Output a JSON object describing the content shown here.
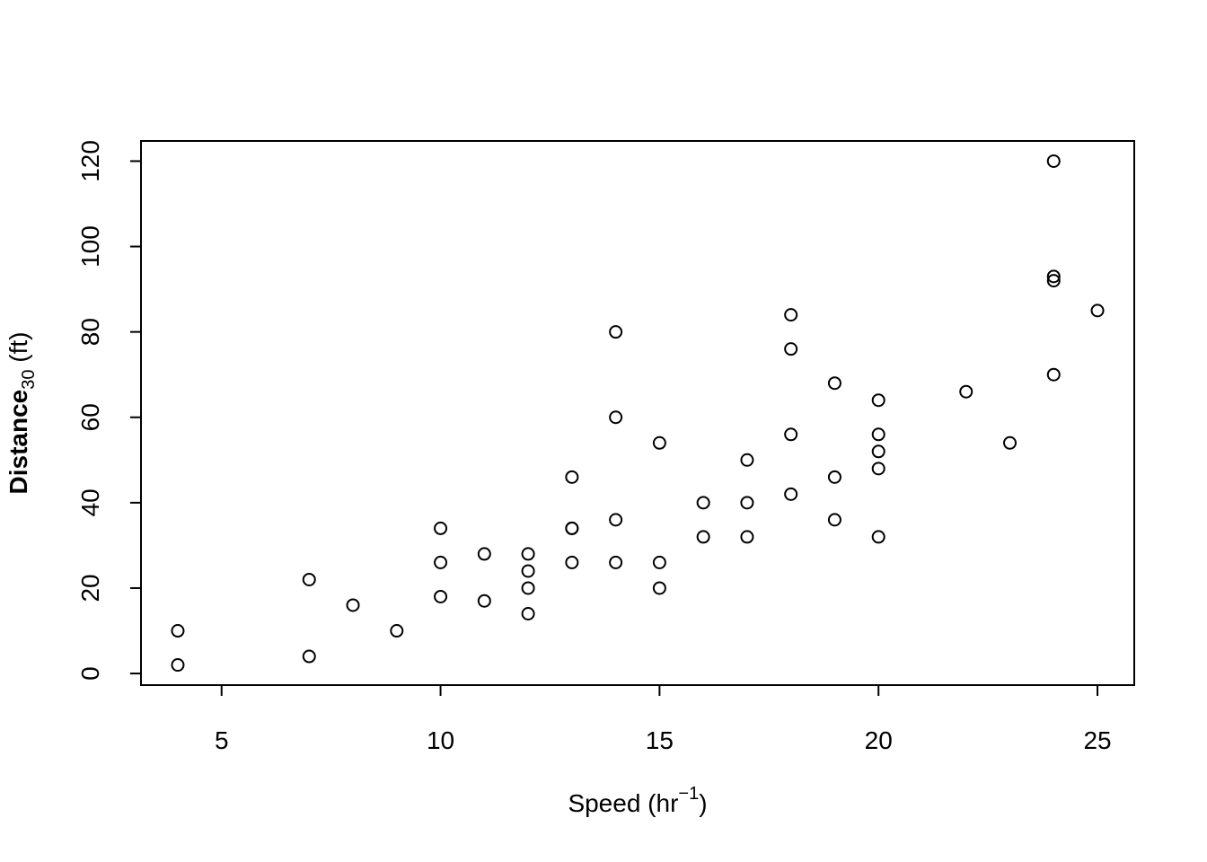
{
  "chart_data": {
    "type": "scatter",
    "x_label": {
      "text": "Speed (hr",
      "sup": "−1",
      "after": ")"
    },
    "y_label": {
      "text": "Distance",
      "sub": "30",
      "after": " (ft)"
    },
    "x": [
      4,
      4,
      7,
      7,
      8,
      9,
      10,
      10,
      10,
      11,
      11,
      12,
      12,
      12,
      12,
      13,
      13,
      13,
      13,
      14,
      14,
      14,
      14,
      15,
      15,
      15,
      16,
      16,
      17,
      17,
      17,
      18,
      18,
      18,
      18,
      19,
      19,
      19,
      20,
      20,
      20,
      20,
      20,
      22,
      23,
      24,
      24,
      24,
      24,
      25
    ],
    "y": [
      2,
      10,
      4,
      22,
      16,
      10,
      18,
      26,
      34,
      17,
      28,
      14,
      20,
      24,
      28,
      26,
      34,
      34,
      46,
      26,
      36,
      60,
      80,
      20,
      26,
      54,
      32,
      40,
      32,
      40,
      50,
      42,
      56,
      76,
      84,
      36,
      46,
      68,
      32,
      48,
      52,
      56,
      64,
      66,
      54,
      70,
      92,
      93,
      120,
      85
    ],
    "xlim": [
      3.16,
      25.84
    ],
    "ylim": [
      -2.72,
      124.72
    ],
    "xticks": [
      5,
      10,
      15,
      20,
      25
    ],
    "yticks": [
      0,
      20,
      40,
      60,
      80,
      100,
      120
    ],
    "color": "#000000"
  }
}
